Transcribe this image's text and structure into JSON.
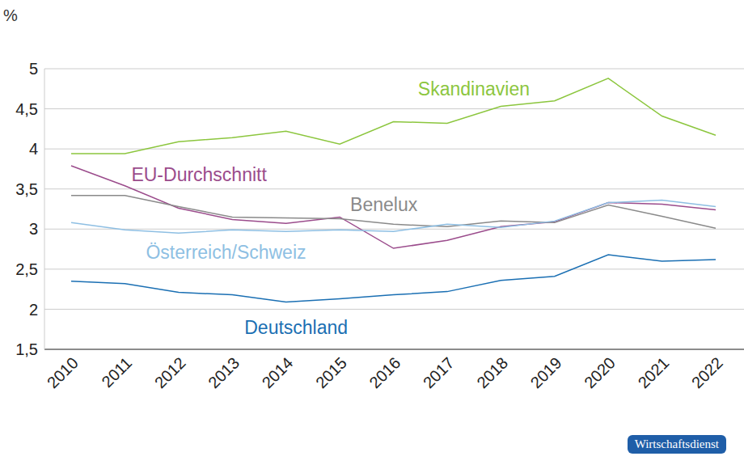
{
  "chart_data": {
    "type": "line",
    "y_label": "%",
    "categories": [
      "2010",
      "2011",
      "2012",
      "2013",
      "2014",
      "2015",
      "2016",
      "2017",
      "2018",
      "2019",
      "2020",
      "2021",
      "2022"
    ],
    "series": [
      {
        "name": "Skandinavien",
        "color": "#8cc63e",
        "values": [
          3.94,
          3.94,
          4.09,
          4.14,
          4.22,
          4.06,
          4.34,
          4.32,
          4.53,
          4.6,
          4.88,
          4.41,
          4.17
        ]
      },
      {
        "name": "EU-Durchschnitt",
        "color": "#9b4c8c",
        "values": [
          3.79,
          3.54,
          3.26,
          3.12,
          3.07,
          3.15,
          2.76,
          2.86,
          3.03,
          3.09,
          3.33,
          3.31,
          3.24
        ]
      },
      {
        "name": "Benelux",
        "color": "#8a8a8a",
        "values": [
          3.42,
          3.42,
          3.28,
          3.15,
          3.14,
          3.13,
          3.06,
          3.03,
          3.1,
          3.08,
          3.3,
          3.16,
          3.01
        ]
      },
      {
        "name": "Österreich/Schweiz",
        "color": "#8ebfe3",
        "values": [
          3.08,
          2.99,
          2.95,
          2.99,
          2.97,
          2.99,
          2.97,
          3.06,
          3.02,
          3.1,
          3.33,
          3.36,
          3.28
        ]
      },
      {
        "name": "Deutschland",
        "color": "#1a6fb3",
        "values": [
          2.35,
          2.32,
          2.21,
          2.18,
          2.09,
          2.13,
          2.18,
          2.22,
          2.36,
          2.41,
          2.68,
          2.6,
          2.62
        ]
      }
    ],
    "ylim": [
      1.5,
      5
    ],
    "yticks": [
      {
        "value": 1.5,
        "label": "1,5"
      },
      2,
      {
        "value": 2.5,
        "label": "2,5"
      },
      3,
      {
        "value": 3.5,
        "label": "3,5"
      },
      4,
      {
        "value": 4.5,
        "label": "4,5"
      },
      5
    ],
    "grid": true,
    "annotations": [
      "Wirtschaftsdienst"
    ]
  }
}
